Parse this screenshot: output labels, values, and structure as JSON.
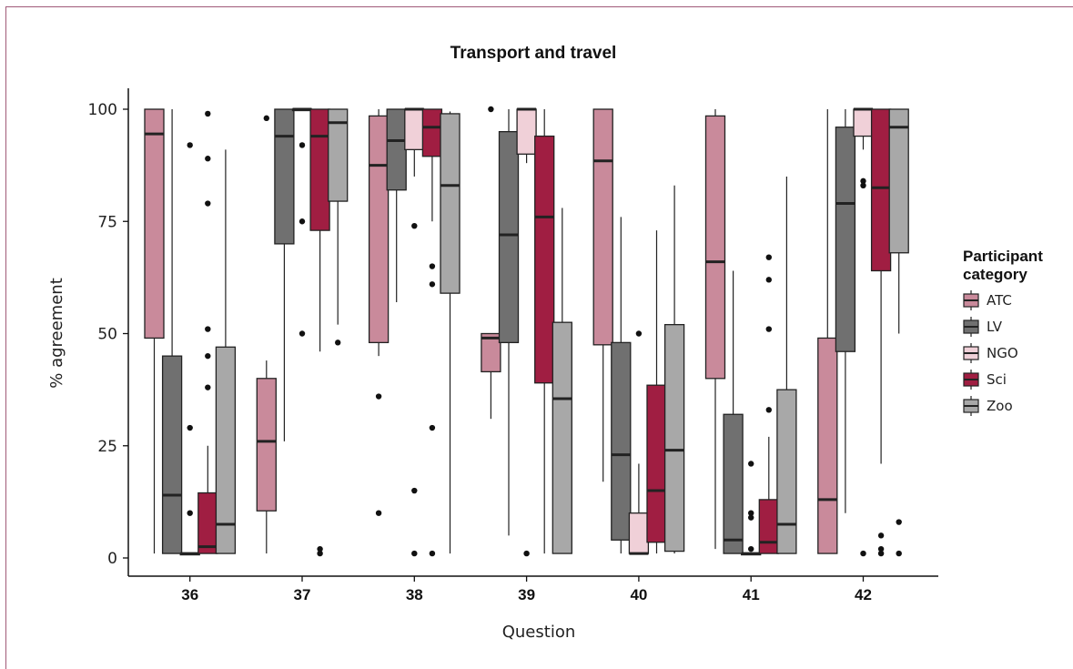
{
  "chart_data": {
    "type": "box",
    "title": "Transport and travel",
    "xlabel": "Question",
    "ylabel": "% agreement",
    "categories": [
      "36",
      "37",
      "38",
      "39",
      "40",
      "41",
      "42"
    ],
    "ylim": [
      0,
      100
    ],
    "yticks": [
      "0",
      "25",
      "50",
      "75",
      "100"
    ],
    "grid": false,
    "legend": {
      "title_lines": [
        "Participant",
        "category"
      ],
      "placement": "right",
      "entries": [
        "ATC",
        "LV",
        "NGO",
        "Sci",
        "Zoo"
      ]
    },
    "colors": {
      "ATC": "#c98a9b",
      "LV": "#707070",
      "NGO": "#f0d0d8",
      "Sci": "#a01e42",
      "Zoo": "#a8a8a8"
    },
    "series": [
      {
        "name": "ATC",
        "boxes": [
          {
            "min": 1,
            "q1": 49,
            "median": 94.5,
            "q3": 100,
            "max": 100,
            "outliers": []
          },
          {
            "min": 1,
            "q1": 10.5,
            "median": 26,
            "q3": 40,
            "max": 44,
            "outliers": [
              98
            ]
          },
          {
            "min": 45,
            "q1": 48,
            "median": 87.5,
            "q3": 98.5,
            "max": 100,
            "outliers": [
              36,
              10
            ]
          },
          {
            "min": 31,
            "q1": 41.5,
            "median": 49,
            "q3": 50,
            "max": 50,
            "outliers": [
              100
            ]
          },
          {
            "min": 17,
            "q1": 47.5,
            "median": 88.5,
            "q3": 100,
            "max": 100,
            "outliers": []
          },
          {
            "min": 2,
            "q1": 40,
            "median": 66,
            "q3": 98.5,
            "max": 100,
            "outliers": []
          },
          {
            "min": 1,
            "q1": 1,
            "median": 13,
            "q3": 49,
            "max": 100,
            "outliers": []
          }
        ]
      },
      {
        "name": "LV",
        "boxes": [
          {
            "min": 1,
            "q1": 1,
            "median": 14,
            "q3": 45,
            "max": 100,
            "outliers": []
          },
          {
            "min": 26,
            "q1": 70,
            "median": 94,
            "q3": 100,
            "max": 100,
            "outliers": []
          },
          {
            "min": 57,
            "q1": 82,
            "median": 93,
            "q3": 100,
            "max": 100,
            "outliers": []
          },
          {
            "min": 5,
            "q1": 48,
            "median": 72,
            "q3": 95,
            "max": 100,
            "outliers": []
          },
          {
            "min": 1,
            "q1": 4,
            "median": 23,
            "q3": 48,
            "max": 76,
            "outliers": []
          },
          {
            "min": 1,
            "q1": 1,
            "median": 4,
            "q3": 32,
            "max": 64,
            "outliers": []
          },
          {
            "min": 10,
            "q1": 46,
            "median": 79,
            "q3": 96,
            "max": 100,
            "outliers": []
          }
        ]
      },
      {
        "name": "NGO",
        "boxes": [
          {
            "min": 1,
            "q1": 1,
            "median": 1,
            "q3": 1,
            "max": 1,
            "outliers": [
              92,
              29,
              10
            ]
          },
          {
            "min": 100,
            "q1": 100,
            "median": 100,
            "q3": 100,
            "max": 100,
            "outliers": [
              92,
              75,
              50
            ]
          },
          {
            "min": 85,
            "q1": 91,
            "median": 100,
            "q3": 100,
            "max": 100,
            "outliers": [
              74,
              15,
              1
            ]
          },
          {
            "min": 88,
            "q1": 90,
            "median": 100,
            "q3": 100,
            "max": 100,
            "outliers": [
              1
            ]
          },
          {
            "min": 1,
            "q1": 1,
            "median": 1,
            "q3": 10,
            "max": 21,
            "outliers": [
              50
            ]
          },
          {
            "min": 1,
            "q1": 1,
            "median": 1,
            "q3": 1,
            "max": 1,
            "outliers": [
              21,
              10,
              9,
              2
            ]
          },
          {
            "min": 91,
            "q1": 94,
            "median": 100,
            "q3": 100,
            "max": 100,
            "outliers": [
              84,
              83,
              1
            ]
          }
        ]
      },
      {
        "name": "Sci",
        "boxes": [
          {
            "min": 1,
            "q1": 1,
            "median": 2.5,
            "q3": 14.5,
            "max": 25,
            "outliers": [
              99,
              89,
              79,
              51,
              45,
              38
            ]
          },
          {
            "min": 46,
            "q1": 73,
            "median": 94,
            "q3": 100,
            "max": 100,
            "outliers": [
              2,
              1
            ]
          },
          {
            "min": 75,
            "q1": 89.5,
            "median": 96,
            "q3": 100,
            "max": 100,
            "outliers": [
              65,
              61,
              29,
              1
            ]
          },
          {
            "min": 1,
            "q1": 39,
            "median": 76,
            "q3": 94,
            "max": 100,
            "outliers": []
          },
          {
            "min": 1,
            "q1": 3.5,
            "median": 15,
            "q3": 38.5,
            "max": 73,
            "outliers": []
          },
          {
            "min": 1,
            "q1": 1,
            "median": 3.5,
            "q3": 13,
            "max": 27,
            "outliers": [
              67,
              62,
              51,
              33
            ]
          },
          {
            "min": 21,
            "q1": 64,
            "median": 82.5,
            "q3": 100,
            "max": 100,
            "outliers": [
              5,
              2,
              1
            ]
          }
        ]
      },
      {
        "name": "Zoo",
        "boxes": [
          {
            "min": 1,
            "q1": 1,
            "median": 7.5,
            "q3": 47,
            "max": 91,
            "outliers": []
          },
          {
            "min": 52,
            "q1": 79.5,
            "median": 97,
            "q3": 100,
            "max": 100,
            "outliers": [
              48
            ]
          },
          {
            "min": 1,
            "q1": 59,
            "median": 83,
            "q3": 99,
            "max": 99.5,
            "outliers": []
          },
          {
            "min": 1,
            "q1": 1,
            "median": 35.5,
            "q3": 52.5,
            "max": 78,
            "outliers": []
          },
          {
            "min": 1,
            "q1": 1.5,
            "median": 24,
            "q3": 52,
            "max": 83,
            "outliers": []
          },
          {
            "min": 1,
            "q1": 1,
            "median": 7.5,
            "q3": 37.5,
            "max": 85,
            "outliers": []
          },
          {
            "min": 50,
            "q1": 68,
            "median": 96,
            "q3": 100,
            "max": 100,
            "outliers": [
              8,
              1
            ]
          }
        ]
      }
    ]
  }
}
